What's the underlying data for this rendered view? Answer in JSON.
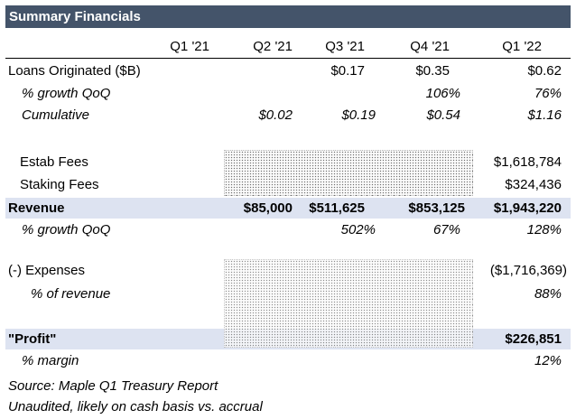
{
  "title": "Summary Financials",
  "columns": [
    "Q1 '21",
    "Q2 '21",
    "Q3 '21",
    "Q4 '21",
    "Q1 '22"
  ],
  "rows": {
    "loans": {
      "label": "Loans Originated ($B)",
      "values": [
        "",
        "",
        "$0.17",
        "$0.35",
        "$0.62"
      ]
    },
    "loans_growth": {
      "label": "% growth QoQ",
      "values": [
        "",
        "",
        "",
        "106%",
        "76%"
      ]
    },
    "cumulative": {
      "label": "Cumulative",
      "values": [
        "",
        "$0.02",
        "$0.19",
        "$0.54",
        "$1.16"
      ]
    },
    "estab_fees": {
      "label": "Estab Fees",
      "values": [
        "",
        "",
        "",
        "",
        "$1,618,784"
      ]
    },
    "staking_fees": {
      "label": "Staking Fees",
      "values": [
        "",
        "",
        "",
        "",
        "$324,436"
      ]
    },
    "revenue": {
      "label": "Revenue",
      "values": [
        "",
        "$85,000",
        "$511,625",
        "$853,125",
        "$1,943,220"
      ]
    },
    "rev_growth": {
      "label": "% growth QoQ",
      "values": [
        "",
        "",
        "502%",
        "67%",
        "128%"
      ]
    },
    "expenses": {
      "label": "(-) Expenses",
      "values": [
        "",
        "",
        "",
        "",
        "($1,716,369)"
      ]
    },
    "pct_revenue": {
      "label": "% of revenue",
      "values": [
        "",
        "",
        "",
        "",
        "88%"
      ]
    },
    "profit": {
      "label": "\"Profit\"",
      "values": [
        "",
        "",
        "",
        "",
        "$226,851"
      ]
    },
    "margin": {
      "label": "% margin",
      "values": [
        "",
        "",
        "",
        "",
        "12%"
      ]
    }
  },
  "footnotes": {
    "source": "Source: Maple Q1 Treasury Report",
    "note": "Unaudited, likely on cash basis vs. accrual"
  },
  "colors": {
    "title_bar": "#44546a",
    "highlight_band": "#dde3f1"
  }
}
